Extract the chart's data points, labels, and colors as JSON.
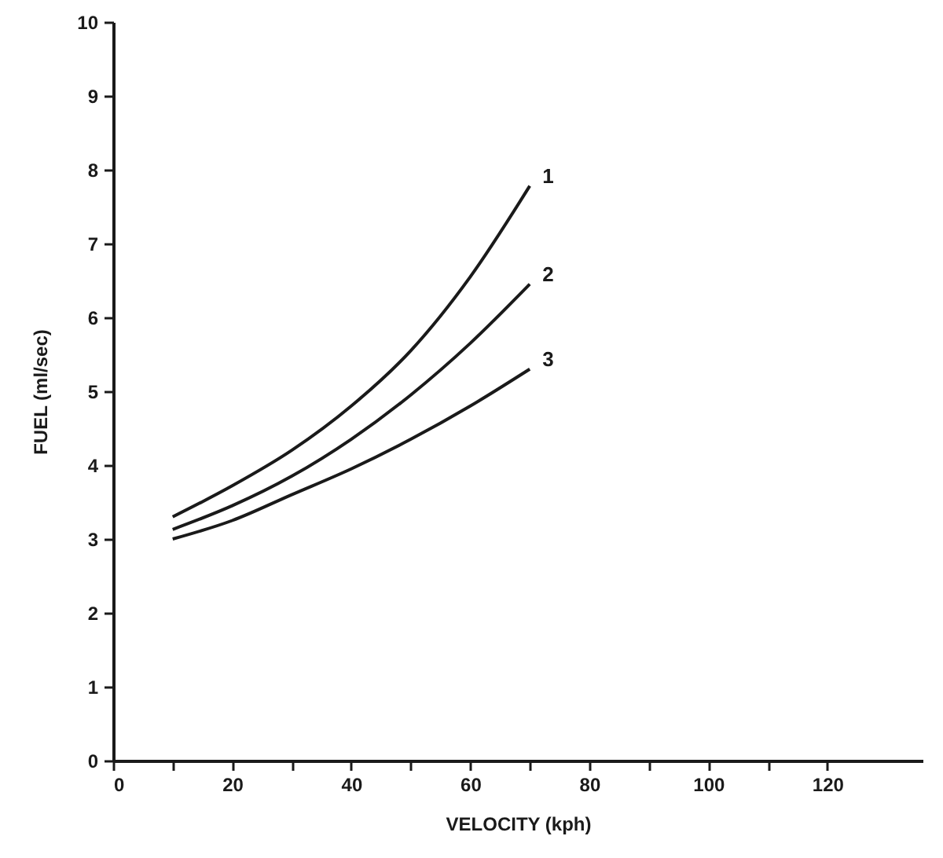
{
  "chart_data": {
    "type": "line",
    "xlabel": "VELOCITY (kph)",
    "ylabel": "FUEL (ml/sec)",
    "x": [
      10,
      20,
      30,
      40,
      50,
      60,
      70
    ],
    "series": [
      {
        "name": "1",
        "color": "#1a1a1a",
        "values": [
          3.3,
          3.72,
          4.2,
          4.8,
          5.55,
          6.55,
          7.78
        ]
      },
      {
        "name": "2",
        "color": "#1a1a1a",
        "values": [
          3.13,
          3.45,
          3.85,
          4.35,
          4.95,
          5.65,
          6.45
        ]
      },
      {
        "name": "3",
        "color": "#1a1a1a",
        "values": [
          3.0,
          3.25,
          3.6,
          3.95,
          4.35,
          4.8,
          5.3
        ]
      }
    ],
    "xlim": [
      0,
      136
    ],
    "xticks": [
      0,
      {
        "value": 10,
        "label": null
      },
      20,
      {
        "value": 30,
        "label": null
      },
      40,
      {
        "value": 50,
        "label": null
      },
      60,
      {
        "value": 70,
        "label": null
      },
      80,
      {
        "value": 90,
        "label": null
      },
      100,
      {
        "value": 110,
        "label": null
      },
      120
    ],
    "ylim": [
      0,
      10
    ],
    "yticks": [
      0,
      1,
      2,
      3,
      4,
      5,
      6,
      7,
      8,
      9,
      10
    ],
    "grid": false,
    "marker": "none",
    "line_style": "solid"
  }
}
